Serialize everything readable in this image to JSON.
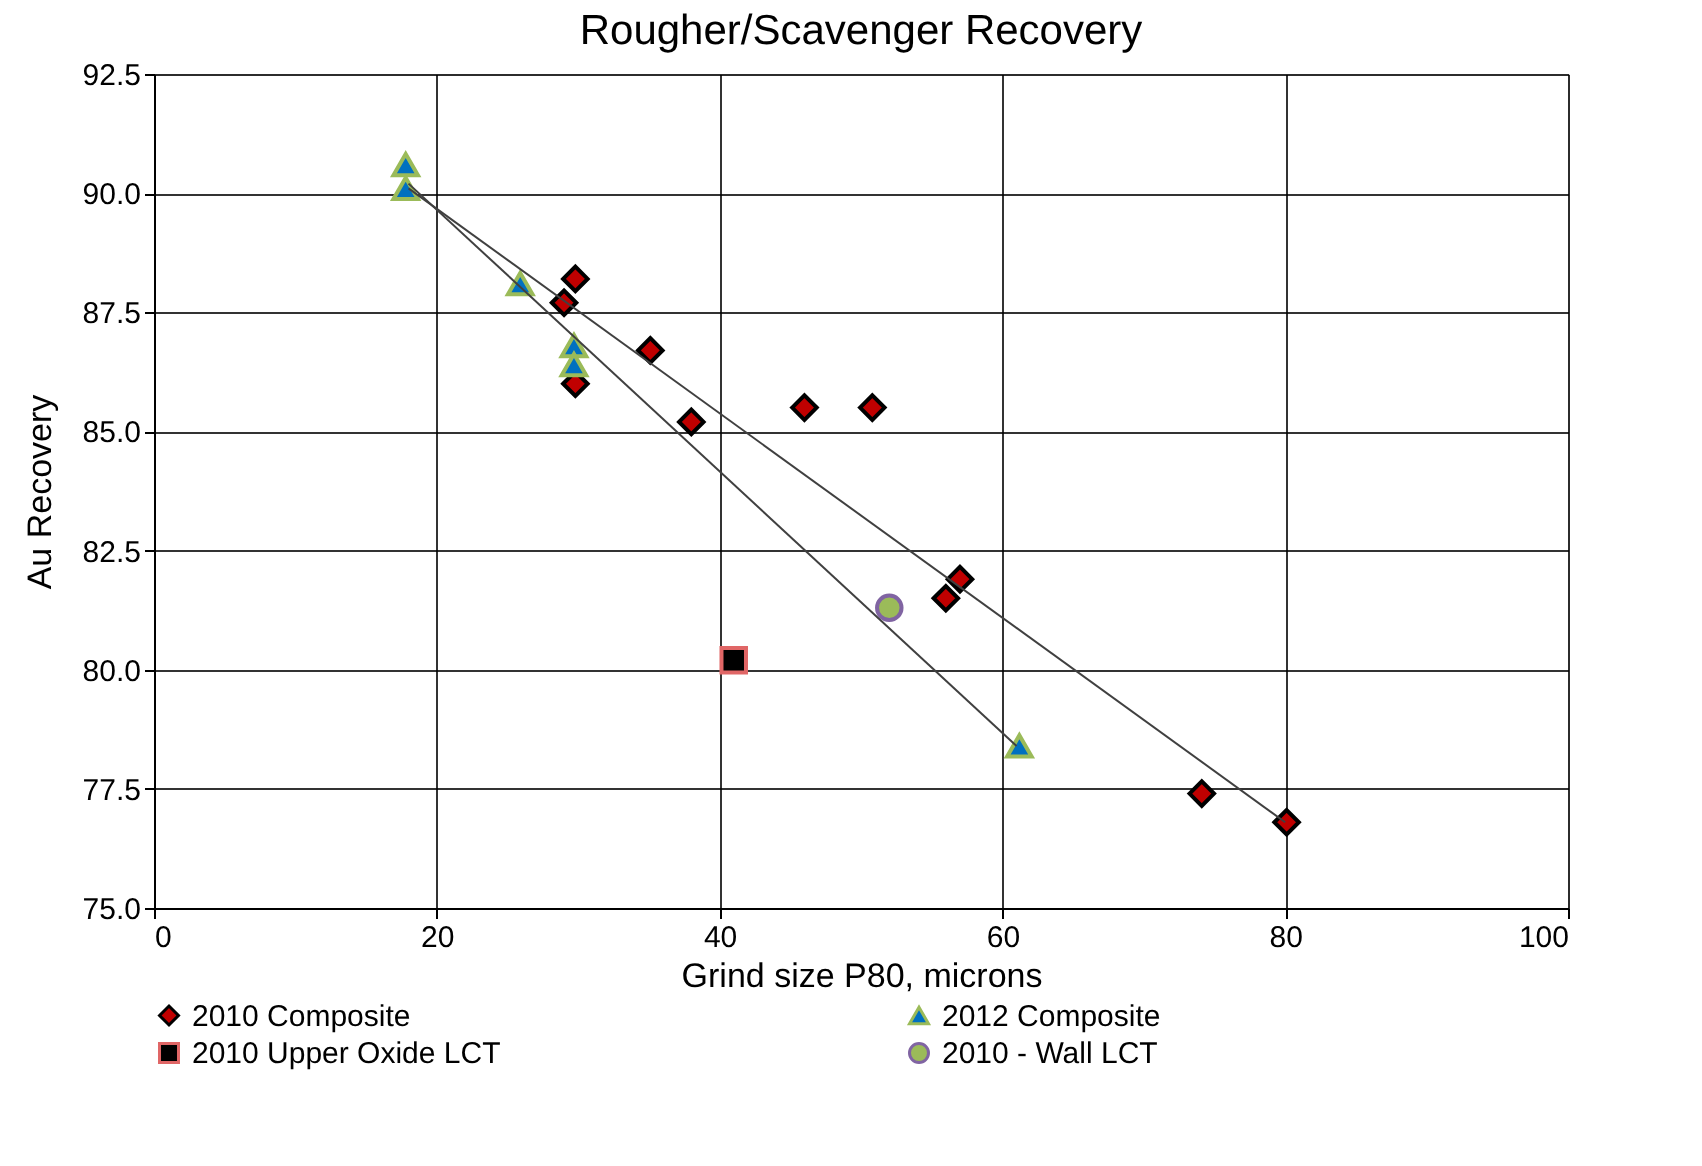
{
  "chart_data": {
    "type": "scatter",
    "title": "Rougher/Scavenger Recovery",
    "xlabel": "Grind size P80, microns",
    "ylabel": "Au Recovery",
    "xlim": [
      0,
      100
    ],
    "xticks": [
      0,
      20,
      40,
      60,
      80,
      100
    ],
    "ylim": [
      75,
      92.5
    ],
    "yticks": [
      {
        "value": 75,
        "label": "75.0"
      },
      {
        "value": 77.5,
        "label": "77.5"
      },
      {
        "value": 80,
        "label": "80.0"
      },
      {
        "value": 82.5,
        "label": "82.5"
      },
      {
        "value": 85,
        "label": "85.0"
      },
      {
        "value": 87.5,
        "label": "87.5"
      },
      {
        "value": 90,
        "label": "90.0"
      },
      {
        "value": 92.5,
        "label": "92.5"
      }
    ],
    "grid": true,
    "legend": "bottom",
    "series": [
      {
        "name": "2010 Composite",
        "color": "#c00000",
        "marker": "diamond",
        "x": [
          29,
          29.8,
          35.1,
          29.8,
          38,
          46,
          50.8,
          57,
          56,
          74.1,
          80.1
        ],
        "values": [
          87.7,
          88.2,
          86.7,
          86.0,
          85.2,
          85.5,
          85.5,
          81.9,
          81.5,
          77.4,
          76.8
        ]
      },
      {
        "name": "2012 Composite",
        "color": "#0070c0",
        "marker": "triangle",
        "x": [
          17.8,
          17.8,
          25.9,
          29.7,
          29.7,
          61.2
        ],
        "values": [
          90.6,
          90.1,
          88.1,
          86.8,
          86.4,
          78.4
        ]
      },
      {
        "name": "2010 Upper Oxide LCT",
        "color": "#000000",
        "marker": "square",
        "x": [
          41
        ],
        "values": [
          80.2
        ]
      },
      {
        "name": "2010 - Wall LCT",
        "color": "#9bbb59",
        "marker": "circle",
        "x": [
          52
        ],
        "values": [
          81.3
        ]
      },
      {
        "type": "line",
        "color": "#404040",
        "x": [
          18,
          80
        ],
        "values": [
          90.1,
          76.8
        ]
      },
      {
        "type": "line",
        "color": "#404040",
        "x": [
          18,
          61
        ],
        "values": [
          90.2,
          78.4
        ]
      }
    ]
  }
}
